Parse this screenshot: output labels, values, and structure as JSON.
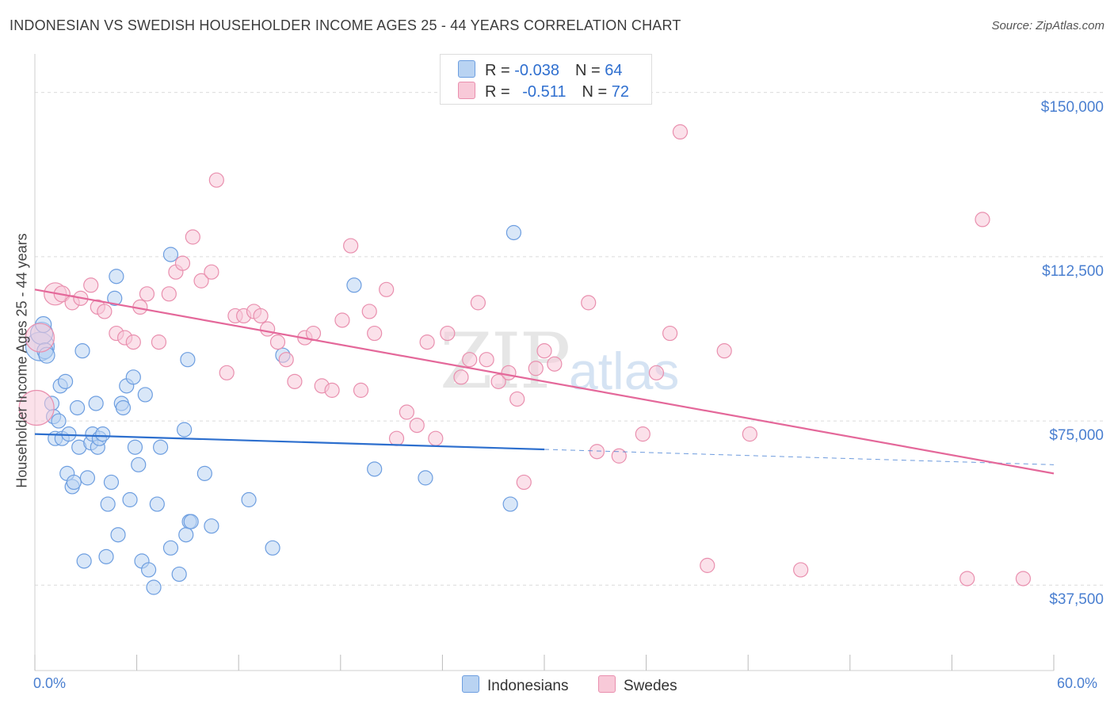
{
  "header": {
    "title": "INDONESIAN VS SWEDISH HOUSEHOLDER INCOME AGES 25 - 44 YEARS CORRELATION CHART",
    "source": "Source: ZipAtlas.com"
  },
  "watermark": {
    "zip": "ZIP",
    "atlas": "atlas"
  },
  "legend": {
    "rows": [
      {
        "r_label": "R = ",
        "r_value": "-0.038",
        "n_label": "N = ",
        "n_value": "64"
      },
      {
        "r_label": "R = ",
        "r_value": "-0.511",
        "n_label": "N = ",
        "n_value": "72"
      }
    ],
    "bottom": [
      "Indonesians",
      "Swedes"
    ]
  },
  "colors": {
    "blue_fill": "#b9d3f2",
    "blue_stroke": "#6d9ee0",
    "blue_line": "#2d6fce",
    "pink_fill": "#f8c9d8",
    "pink_stroke": "#e98fae",
    "pink_line": "#e4689a",
    "grid": "#dcdcdc",
    "axis_text": "#4a7fd0"
  },
  "chart_data": {
    "type": "scatter",
    "title": "INDONESIAN VS SWEDISH HOUSEHOLDER INCOME AGES 25 - 44 YEARS CORRELATION CHART",
    "xlabel": "",
    "ylabel": "Householder Income Ages 25 - 44 years",
    "xlim": [
      0,
      60
    ],
    "ylim": [
      18000,
      157000
    ],
    "x_tick_labels": [
      "0.0%",
      "60.0%"
    ],
    "y_ticks": [
      37500,
      75000,
      112500,
      150000
    ],
    "y_tick_labels": [
      "$37,500",
      "$75,000",
      "$112,500",
      "$150,000"
    ],
    "series": [
      {
        "name": "Indonesians",
        "r": -0.038,
        "n": 64,
        "trend": {
          "x0": 0,
          "y0": 72000,
          "x1": 30,
          "y1": 68500,
          "dashed_to_x": 60,
          "dashed_to_y": 65000
        },
        "points": [
          [
            0.3,
            92000,
            18
          ],
          [
            0.4,
            95000,
            14
          ],
          [
            0.5,
            97000,
            10
          ],
          [
            0.6,
            91000,
            10
          ],
          [
            0.7,
            90000,
            10
          ],
          [
            1.0,
            79000,
            9
          ],
          [
            1.1,
            76000,
            9
          ],
          [
            1.2,
            71000,
            9
          ],
          [
            1.4,
            75000,
            9
          ],
          [
            1.5,
            83000,
            9
          ],
          [
            1.6,
            71000,
            9
          ],
          [
            1.8,
            84000,
            9
          ],
          [
            1.9,
            63000,
            9
          ],
          [
            2.0,
            72000,
            9
          ],
          [
            2.2,
            60000,
            9
          ],
          [
            2.3,
            61000,
            9
          ],
          [
            2.5,
            78000,
            9
          ],
          [
            2.6,
            69000,
            9
          ],
          [
            2.8,
            91000,
            9
          ],
          [
            2.9,
            43000,
            9
          ],
          [
            3.1,
            62000,
            9
          ],
          [
            3.3,
            70000,
            9
          ],
          [
            3.4,
            72000,
            9
          ],
          [
            3.6,
            79000,
            9
          ],
          [
            3.7,
            69000,
            9
          ],
          [
            3.8,
            71000,
            9
          ],
          [
            4.0,
            72000,
            9
          ],
          [
            4.2,
            44000,
            9
          ],
          [
            4.3,
            56000,
            9
          ],
          [
            4.5,
            61000,
            9
          ],
          [
            4.7,
            103000,
            9
          ],
          [
            4.8,
            108000,
            9
          ],
          [
            4.9,
            49000,
            9
          ],
          [
            5.1,
            79000,
            9
          ],
          [
            5.2,
            78000,
            9
          ],
          [
            5.4,
            83000,
            9
          ],
          [
            5.6,
            57000,
            9
          ],
          [
            5.8,
            85000,
            9
          ],
          [
            5.9,
            69000,
            9
          ],
          [
            6.1,
            65000,
            9
          ],
          [
            6.3,
            43000,
            9
          ],
          [
            6.5,
            81000,
            9
          ],
          [
            6.7,
            41000,
            9
          ],
          [
            7.0,
            37000,
            9
          ],
          [
            7.2,
            56000,
            9
          ],
          [
            7.4,
            69000,
            9
          ],
          [
            8.0,
            46000,
            9
          ],
          [
            8.0,
            113000,
            9
          ],
          [
            8.5,
            40000,
            9
          ],
          [
            8.8,
            73000,
            9
          ],
          [
            9.0,
            89000,
            9
          ],
          [
            9.1,
            52000,
            9
          ],
          [
            9.2,
            52000,
            9
          ],
          [
            10.0,
            63000,
            9
          ],
          [
            10.4,
            51000,
            9
          ],
          [
            12.6,
            57000,
            9
          ],
          [
            14.0,
            46000,
            9
          ],
          [
            14.6,
            90000,
            9
          ],
          [
            18.8,
            106000,
            9
          ],
          [
            20.0,
            64000,
            9
          ],
          [
            23.0,
            62000,
            9
          ],
          [
            28.0,
            56000,
            9
          ],
          [
            28.2,
            118000,
            9
          ],
          [
            8.9,
            49000,
            9
          ]
        ]
      },
      {
        "name": "Swedes",
        "r": -0.511,
        "n": 72,
        "trend": {
          "x0": 0,
          "y0": 105000,
          "x1": 60,
          "y1": 63000
        },
        "points": [
          [
            0.1,
            78000,
            22
          ],
          [
            0.3,
            94000,
            18
          ],
          [
            1.2,
            104000,
            14
          ],
          [
            1.6,
            104000,
            10
          ],
          [
            2.2,
            102000,
            9
          ],
          [
            2.7,
            103000,
            9
          ],
          [
            3.3,
            106000,
            9
          ],
          [
            3.7,
            101000,
            9
          ],
          [
            4.1,
            100000,
            9
          ],
          [
            4.8,
            95000,
            9
          ],
          [
            5.3,
            94000,
            9
          ],
          [
            5.8,
            93000,
            9
          ],
          [
            6.2,
            101000,
            9
          ],
          [
            6.6,
            104000,
            9
          ],
          [
            7.3,
            93000,
            9
          ],
          [
            7.9,
            104000,
            9
          ],
          [
            8.3,
            109000,
            9
          ],
          [
            8.7,
            111000,
            9
          ],
          [
            9.3,
            117000,
            9
          ],
          [
            9.8,
            107000,
            9
          ],
          [
            10.4,
            109000,
            9
          ],
          [
            10.7,
            130000,
            9
          ],
          [
            11.3,
            86000,
            9
          ],
          [
            11.8,
            99000,
            9
          ],
          [
            12.3,
            99000,
            9
          ],
          [
            12.9,
            100000,
            9
          ],
          [
            13.3,
            99000,
            9
          ],
          [
            13.7,
            96000,
            9
          ],
          [
            14.3,
            93000,
            9
          ],
          [
            14.8,
            89000,
            9
          ],
          [
            15.3,
            84000,
            9
          ],
          [
            15.9,
            94000,
            9
          ],
          [
            16.4,
            95000,
            9
          ],
          [
            16.9,
            83000,
            9
          ],
          [
            17.5,
            82000,
            9
          ],
          [
            18.1,
            98000,
            9
          ],
          [
            18.6,
            115000,
            9
          ],
          [
            19.2,
            82000,
            9
          ],
          [
            19.7,
            100000,
            9
          ],
          [
            20.0,
            95000,
            9
          ],
          [
            20.7,
            105000,
            9
          ],
          [
            21.3,
            71000,
            9
          ],
          [
            21.9,
            77000,
            9
          ],
          [
            22.5,
            74000,
            9
          ],
          [
            23.1,
            93000,
            9
          ],
          [
            23.6,
            71000,
            9
          ],
          [
            24.3,
            95000,
            9
          ],
          [
            25.1,
            85000,
            9
          ],
          [
            25.6,
            89000,
            9
          ],
          [
            26.1,
            102000,
            9
          ],
          [
            26.6,
            89000,
            9
          ],
          [
            27.3,
            84000,
            9
          ],
          [
            27.9,
            86000,
            9
          ],
          [
            28.4,
            80000,
            9
          ],
          [
            28.8,
            61000,
            9
          ],
          [
            29.5,
            87000,
            9
          ],
          [
            30.0,
            91000,
            9
          ],
          [
            30.6,
            88000,
            9
          ],
          [
            32.6,
            102000,
            9
          ],
          [
            33.1,
            68000,
            9
          ],
          [
            34.4,
            67000,
            9
          ],
          [
            35.8,
            72000,
            9
          ],
          [
            36.6,
            86000,
            9
          ],
          [
            37.4,
            95000,
            9
          ],
          [
            38.0,
            141000,
            9
          ],
          [
            39.6,
            42000,
            9
          ],
          [
            40.6,
            91000,
            9
          ],
          [
            42.1,
            72000,
            9
          ],
          [
            45.1,
            41000,
            9
          ],
          [
            54.9,
            39000,
            9
          ],
          [
            55.8,
            121000,
            9
          ],
          [
            58.2,
            39000,
            9
          ]
        ]
      }
    ]
  }
}
